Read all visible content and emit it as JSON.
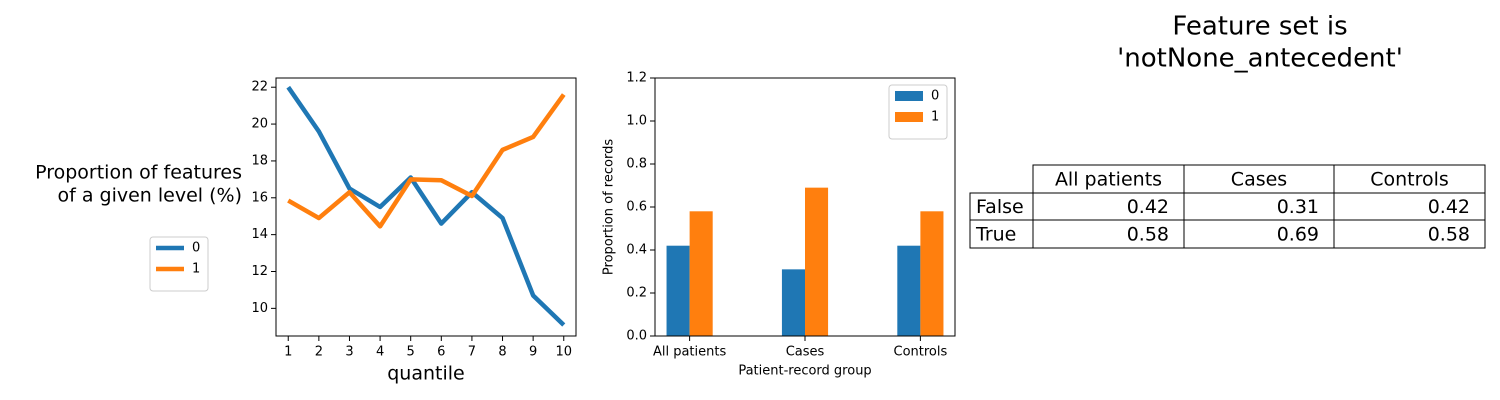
{
  "chart_data": [
    {
      "type": "line",
      "ylabel": [
        "Proportion of features",
        "of a given level (%)"
      ],
      "xlabel": "quantile",
      "x": [
        1,
        2,
        3,
        4,
        5,
        6,
        7,
        8,
        9,
        10
      ],
      "series": [
        {
          "name": "0",
          "color": "#1f77b4",
          "values": [
            22.0,
            19.6,
            16.5,
            15.5,
            17.1,
            14.6,
            16.3,
            14.9,
            10.7,
            9.1
          ]
        },
        {
          "name": "1",
          "color": "#ff7f0e",
          "values": [
            15.85,
            14.9,
            16.3,
            14.45,
            17.0,
            16.95,
            16.1,
            18.6,
            19.3,
            21.6
          ]
        }
      ],
      "xlim": [
        0.6,
        10.4
      ],
      "xticks": [
        1,
        2,
        3,
        4,
        5,
        6,
        7,
        8,
        9,
        10
      ],
      "ylim": [
        8.5,
        22.5
      ],
      "yticks": [
        10,
        12,
        14,
        16,
        18,
        20,
        22
      ],
      "legend": "left"
    },
    {
      "type": "bar",
      "ylabel": "Proportion of records",
      "xlabel": "Patient-record group",
      "categories": [
        "All patients",
        "Cases",
        "Controls"
      ],
      "series": [
        {
          "name": "0",
          "color": "#1f77b4",
          "values": [
            0.42,
            0.31,
            0.42
          ]
        },
        {
          "name": "1",
          "color": "#ff7f0e",
          "values": [
            0.58,
            0.69,
            0.58
          ]
        }
      ],
      "ylim": [
        0,
        1.2
      ],
      "yticks": [
        {
          "value": 0,
          "label": "0.0"
        },
        {
          "value": 0.2,
          "label": "0.2"
        },
        {
          "value": 0.4,
          "label": "0.4"
        },
        {
          "value": 0.6,
          "label": "0.6"
        },
        {
          "value": 0.8,
          "label": "0.8"
        },
        {
          "value": 1.0,
          "label": "1.0"
        },
        {
          "value": 1.2,
          "label": "1.2"
        }
      ],
      "legend": "upper right"
    }
  ],
  "table": {
    "title": [
      "Feature set is",
      "'notNone_antecedent'"
    ],
    "columns": [
      "All patients",
      "Cases",
      "Controls"
    ],
    "rows": [
      {
        "label": "False",
        "cells": [
          0.42,
          0.31,
          0.42
        ]
      },
      {
        "label": "True",
        "cells": [
          0.58,
          0.69,
          0.58
        ]
      }
    ]
  }
}
